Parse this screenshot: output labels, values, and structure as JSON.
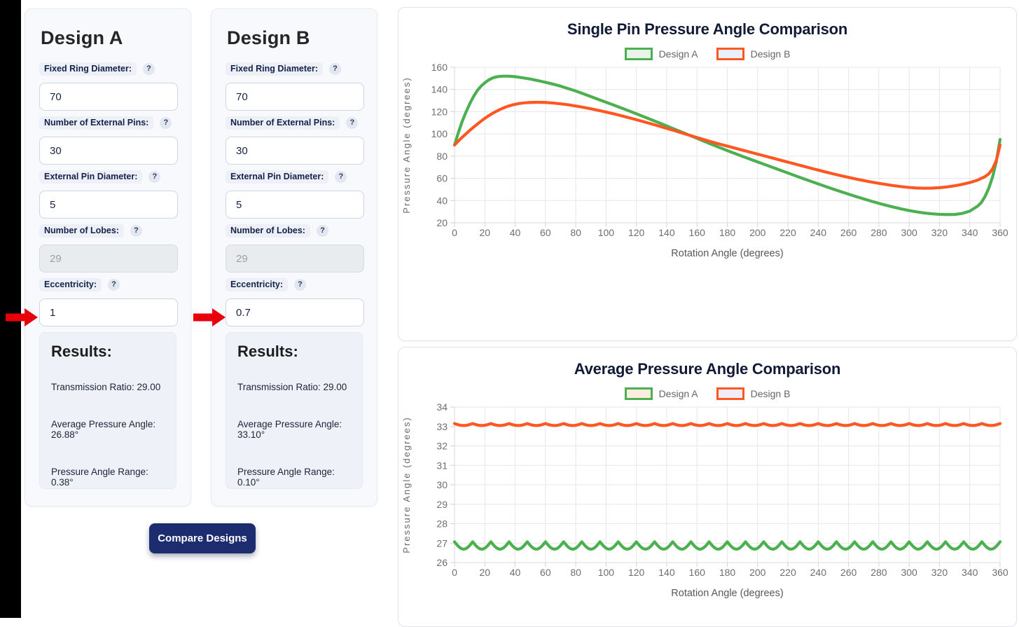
{
  "ui": {
    "help_label": "?",
    "arrow_color": "#e8000b",
    "compare_button": {
      "label": "Compare Designs",
      "background": "#1d2c6f",
      "text_color": "#ffffff"
    }
  },
  "panels": [
    {
      "title": "Design A",
      "fields": [
        {
          "label": "Fixed Ring Diameter:",
          "value": "70",
          "disabled": false
        },
        {
          "label": "Number of External Pins:",
          "value": "30",
          "disabled": false
        },
        {
          "label": "External Pin Diameter:",
          "value": "5",
          "disabled": false
        },
        {
          "label": "Number of Lobes:",
          "value": "29",
          "disabled": true
        },
        {
          "label": "Eccentricity:",
          "value": "1",
          "disabled": false
        }
      ],
      "results": {
        "heading": "Results:",
        "transmission_ratio": "Transmission Ratio: 29.00",
        "average_pressure_angle": "Average Pressure Angle: 26.88°",
        "pressure_angle_range": "Pressure Angle Range: 0.38°"
      }
    },
    {
      "title": "Design B",
      "fields": [
        {
          "label": "Fixed Ring Diameter:",
          "value": "70",
          "disabled": false
        },
        {
          "label": "Number of External Pins:",
          "value": "30",
          "disabled": false
        },
        {
          "label": "External Pin Diameter:",
          "value": "5",
          "disabled": false
        },
        {
          "label": "Number of Lobes:",
          "value": "29",
          "disabled": true
        },
        {
          "label": "Eccentricity:",
          "value": "0.7",
          "disabled": false
        }
      ],
      "results": {
        "heading": "Results:",
        "transmission_ratio": "Transmission Ratio: 29.00",
        "average_pressure_angle": "Average Pressure Angle: 33.10°",
        "pressure_angle_range": "Pressure Angle Range: 0.10°"
      }
    }
  ],
  "chart_data": [
    {
      "type": "line",
      "title": "Single Pin Pressure Angle Comparison",
      "xlabel": "Rotation Angle (degrees)",
      "ylabel": "Pressure Angle (degrees)",
      "xlim": [
        0,
        360
      ],
      "ylim": [
        20,
        160
      ],
      "x_tick_step": 20,
      "y_tick_step": 20,
      "grid": true,
      "legend_position": "top",
      "series": [
        {
          "name": "Design A",
          "color": "#4caf50",
          "swatch_fill": "#eaf4ea",
          "points": [
            [
              0,
              90
            ],
            [
              2.5,
              101
            ],
            [
              5,
              111
            ],
            [
              7.5,
              119.5
            ],
            [
              10,
              127
            ],
            [
              12.5,
              133.5
            ],
            [
              15,
              139
            ],
            [
              17.5,
              143
            ],
            [
              20,
              146
            ],
            [
              22.5,
              148.5
            ],
            [
              25,
              150.3
            ],
            [
              27.5,
              151.3
            ],
            [
              30,
              151.8
            ],
            [
              32.5,
              152
            ],
            [
              35,
              152
            ],
            [
              37.5,
              151.8
            ],
            [
              40,
              151.5
            ],
            [
              45,
              150.5
            ],
            [
              50,
              149.4
            ],
            [
              55,
              148
            ],
            [
              60,
              146.5
            ],
            [
              65,
              144.8
            ],
            [
              70,
              143
            ],
            [
              75,
              140.8
            ],
            [
              80,
              138.6
            ],
            [
              85,
              136.1
            ],
            [
              90,
              133.6
            ],
            [
              95,
              131
            ],
            [
              100,
              128.5
            ],
            [
              105,
              126
            ],
            [
              110,
              123.4
            ],
            [
              115,
              120.8
            ],
            [
              120,
              118.1
            ],
            [
              125,
              115.4
            ],
            [
              130,
              112.7
            ],
            [
              135,
              110
            ],
            [
              140,
              107.2
            ],
            [
              145,
              104.4
            ],
            [
              150,
              101.6
            ],
            [
              155,
              98.8
            ],
            [
              160,
              96
            ],
            [
              165,
              93.2
            ],
            [
              170,
              90.4
            ],
            [
              175,
              87.7
            ],
            [
              180,
              85
            ],
            [
              185,
              82.4
            ],
            [
              190,
              79.8
            ],
            [
              195,
              77.3
            ],
            [
              200,
              74.8
            ],
            [
              205,
              72.3
            ],
            [
              210,
              69.8
            ],
            [
              215,
              67.3
            ],
            [
              220,
              64.8
            ],
            [
              225,
              62.3
            ],
            [
              230,
              59.8
            ],
            [
              235,
              57.4
            ],
            [
              240,
              55
            ],
            [
              245,
              52.6
            ],
            [
              250,
              50.3
            ],
            [
              255,
              48
            ],
            [
              260,
              45.8
            ],
            [
              265,
              43.6
            ],
            [
              270,
              41.5
            ],
            [
              275,
              39.5
            ],
            [
              280,
              37.5
            ],
            [
              285,
              35.7
            ],
            [
              290,
              34
            ],
            [
              295,
              32.4
            ],
            [
              300,
              31
            ],
            [
              305,
              29.8
            ],
            [
              310,
              28.8
            ],
            [
              315,
              28.1
            ],
            [
              320,
              27.6
            ],
            [
              325,
              27.4
            ],
            [
              330,
              27.5
            ],
            [
              335,
              28.4
            ],
            [
              340,
              30.5
            ],
            [
              345,
              34.8
            ],
            [
              347.5,
              38
            ],
            [
              350,
              43.5
            ],
            [
              352.5,
              51
            ],
            [
              355,
              61
            ],
            [
              357.5,
              75
            ],
            [
              360,
              95
            ]
          ]
        },
        {
          "name": "Design B",
          "color": "#ff5722",
          "swatch_fill": "#e8f1fb",
          "points": [
            [
              0,
              90
            ],
            [
              2.5,
              93.5
            ],
            [
              5,
              96.9
            ],
            [
              7.5,
              100
            ],
            [
              10,
              103.1
            ],
            [
              12.5,
              106
            ],
            [
              15,
              108.8
            ],
            [
              17.5,
              111.5
            ],
            [
              20,
              114
            ],
            [
              22.5,
              116.3
            ],
            [
              25,
              118.4
            ],
            [
              27.5,
              120.3
            ],
            [
              30,
              122
            ],
            [
              32.5,
              123.5
            ],
            [
              35,
              124.8
            ],
            [
              37.5,
              125.8
            ],
            [
              40,
              126.6
            ],
            [
              42.5,
              127.3
            ],
            [
              45,
              127.8
            ],
            [
              47.5,
              128.1
            ],
            [
              50,
              128.3
            ],
            [
              52.5,
              128.4
            ],
            [
              55,
              128.5
            ],
            [
              57.5,
              128.4
            ],
            [
              60,
              128.3
            ],
            [
              65,
              127.8
            ],
            [
              70,
              127.1
            ],
            [
              75,
              126.2
            ],
            [
              80,
              125.1
            ],
            [
              85,
              123.9
            ],
            [
              90,
              122.6
            ],
            [
              95,
              121.2
            ],
            [
              100,
              119.7
            ],
            [
              105,
              118.1
            ],
            [
              110,
              116.4
            ],
            [
              115,
              114.6
            ],
            [
              120,
              112.8
            ],
            [
              125,
              110.9
            ],
            [
              130,
              109
            ],
            [
              135,
              107
            ],
            [
              140,
              105
            ],
            [
              145,
              103
            ],
            [
              150,
              100.9
            ],
            [
              155,
              98.8
            ],
            [
              160,
              96.7
            ],
            [
              165,
              94.7
            ],
            [
              170,
              92.7
            ],
            [
              175,
              90.8
            ],
            [
              180,
              89
            ],
            [
              185,
              87.2
            ],
            [
              190,
              85.4
            ],
            [
              195,
              83.6
            ],
            [
              200,
              81.8
            ],
            [
              205,
              80
            ],
            [
              210,
              78.2
            ],
            [
              215,
              76.4
            ],
            [
              220,
              74.6
            ],
            [
              225,
              72.8
            ],
            [
              230,
              71
            ],
            [
              235,
              69.2
            ],
            [
              240,
              67.4
            ],
            [
              245,
              65.7
            ],
            [
              250,
              64
            ],
            [
              255,
              62.4
            ],
            [
              260,
              60.9
            ],
            [
              265,
              59.4
            ],
            [
              270,
              58
            ],
            [
              275,
              56.7
            ],
            [
              280,
              55.5
            ],
            [
              285,
              54.4
            ],
            [
              290,
              53.4
            ],
            [
              295,
              52.5
            ],
            [
              300,
              51.8
            ],
            [
              305,
              51.3
            ],
            [
              310,
              51.1
            ],
            [
              315,
              51.2
            ],
            [
              320,
              51.6
            ],
            [
              325,
              52.3
            ],
            [
              330,
              53.3
            ],
            [
              335,
              54.6
            ],
            [
              340,
              56.2
            ],
            [
              345,
              58.3
            ],
            [
              350,
              61.5
            ],
            [
              352.5,
              64
            ],
            [
              355,
              68.5
            ],
            [
              357.5,
              76
            ],
            [
              360,
              90
            ]
          ]
        }
      ]
    },
    {
      "type": "line",
      "title": "Average Pressure Angle Comparison",
      "xlabel": "Rotation Angle (degrees)",
      "ylabel": "Pressure Angle (degrees)",
      "xlim": [
        0,
        360
      ],
      "ylim": [
        26,
        34
      ],
      "x_tick_step": 20,
      "y_tick_step": 1,
      "grid": true,
      "legend_position": "top",
      "series": [
        {
          "name": "Design A",
          "color": "#4caf50",
          "swatch_fill": "#fbeee1",
          "wave": {
            "max": 27.07,
            "amplitude": 0.38,
            "period_deg": 12
          }
        },
        {
          "name": "Design B",
          "color": "#ff5722",
          "swatch_fill": "#f1ecf9",
          "wave": {
            "max": 33.15,
            "amplitude": 0.1,
            "period_deg": 12
          }
        }
      ]
    }
  ]
}
